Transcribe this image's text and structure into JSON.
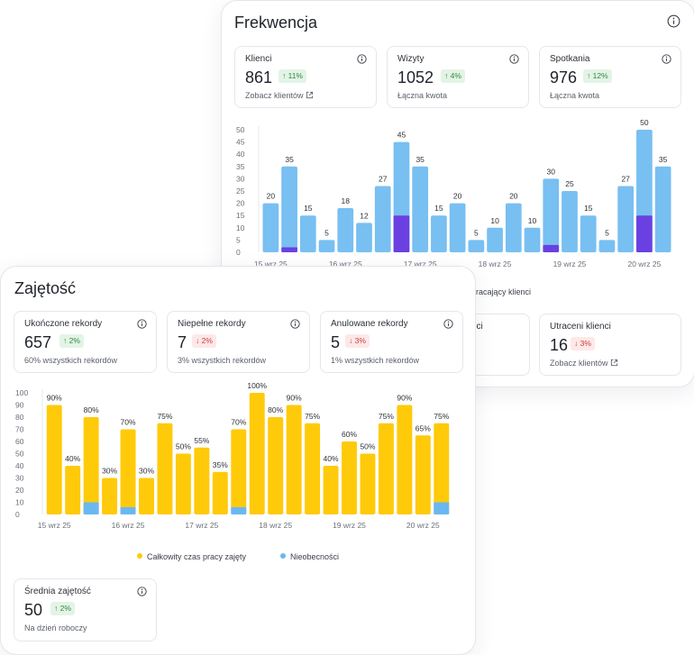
{
  "colors": {
    "blue_bar": "#78bff2",
    "purple_bar": "#6a41e0",
    "yellow_bar": "#ffca0a",
    "absence_blue": "#6ab8f0"
  },
  "back": {
    "title": "Frekwencja",
    "stats": [
      {
        "label": "Klienci",
        "value": "861",
        "badge": "↑ 11%",
        "dir": "up",
        "sub": "Zobacz klientów",
        "link": true
      },
      {
        "label": "Wizyty",
        "value": "1052",
        "badge": "↑ 4%",
        "dir": "up",
        "sub": "Łączna kwota",
        "link": false
      },
      {
        "label": "Spotkania",
        "value": "976",
        "badge": "↑ 12%",
        "dir": "up",
        "sub": "Łączna kwota",
        "link": false
      }
    ],
    "legend_partial": "racający klienci",
    "lower_stats": [
      {
        "label_partial": "nci",
        "sub_partial": ""
      },
      {
        "label": "Utraceni klienci",
        "value": "16",
        "badge": "↓ 3%",
        "dir": "down",
        "sub": "Zobacz klientów"
      }
    ]
  },
  "front": {
    "title": "Zajętość",
    "stats": [
      {
        "label": "Ukończone rekordy",
        "value": "657",
        "badge": "↑ 2%",
        "dir": "up",
        "sub": "60% wszystkich rekordów"
      },
      {
        "label": "Niepełne rekordy",
        "value": "7",
        "badge": "↓ 2%",
        "dir": "down",
        "sub": "3% wszystkich rekordów"
      },
      {
        "label": "Anulowane rekordy",
        "value": "5",
        "badge": "↓ 3%",
        "dir": "down",
        "sub": "1% wszystkich rekordów"
      }
    ],
    "legend": [
      {
        "label": "Całkowity czas pracy zajęty",
        "color": "#ffca0a"
      },
      {
        "label": "Nieobecności",
        "color": "#6ab8f0"
      }
    ],
    "bottom_stat": {
      "label": "Średnia zajętość",
      "value": "50",
      "badge": "↑ 2%",
      "dir": "up",
      "sub": "Na dzień roboczy"
    }
  },
  "chart_data": [
    {
      "type": "bar",
      "title": "Frekwencja",
      "ylim": [
        0,
        50
      ],
      "yticks": [
        0,
        5,
        10,
        15,
        20,
        25,
        30,
        35,
        40,
        45,
        50
      ],
      "xticks": [
        "15 wrz 25",
        "16 wrz 25",
        "17 wrz 25",
        "18 wrz 25",
        "19 wrz 25",
        "20 wrz 25"
      ],
      "values": [
        20,
        35,
        15,
        5,
        18,
        12,
        27,
        45,
        35,
        15,
        20,
        5,
        10,
        20,
        10,
        30,
        25,
        15,
        5,
        27,
        50,
        35
      ],
      "purple": [
        0,
        2,
        0,
        0,
        0,
        0,
        0,
        15,
        0,
        0,
        0,
        0,
        0,
        0,
        0,
        3,
        0,
        0,
        0,
        0,
        15,
        0
      ],
      "labels": [
        "20",
        "35",
        "15",
        "5",
        "18",
        "12",
        "27",
        "45",
        "35",
        "15",
        "20",
        "5",
        "10",
        "20",
        "10",
        "30",
        "25",
        "15",
        "5",
        "27",
        "50",
        "35"
      ]
    },
    {
      "type": "bar",
      "title": "Zajętość",
      "ylim": [
        0,
        100
      ],
      "yticks": [
        0,
        10,
        20,
        30,
        40,
        50,
        60,
        70,
        80,
        90,
        100
      ],
      "xticks": [
        "15 wrz 25",
        "16 wrz 25",
        "17 wrz 25",
        "18 wrz 25",
        "19 wrz 25",
        "20 wrz 25"
      ],
      "series": [
        {
          "name": "Całkowity czas pracy zajęty",
          "values": [
            90,
            40,
            80,
            30,
            70,
            30,
            75,
            50,
            55,
            35,
            70,
            100,
            80,
            90,
            75,
            40,
            60,
            50,
            75,
            90,
            65,
            75
          ]
        },
        {
          "name": "Nieobecności",
          "values": [
            0,
            0,
            10,
            0,
            6,
            0,
            0,
            0,
            0,
            0,
            6,
            0,
            0,
            0,
            0,
            0,
            0,
            0,
            0,
            0,
            0,
            10
          ]
        }
      ],
      "labels": [
        "90%",
        "40%",
        "80%",
        "30%",
        "70%",
        "30%",
        "75%",
        "50%",
        "55%",
        "35%",
        "70%",
        "100%",
        "80%",
        "90%",
        "75%",
        "40%",
        "60%",
        "50%",
        "75%",
        "90%",
        "65%",
        "75%"
      ]
    }
  ]
}
